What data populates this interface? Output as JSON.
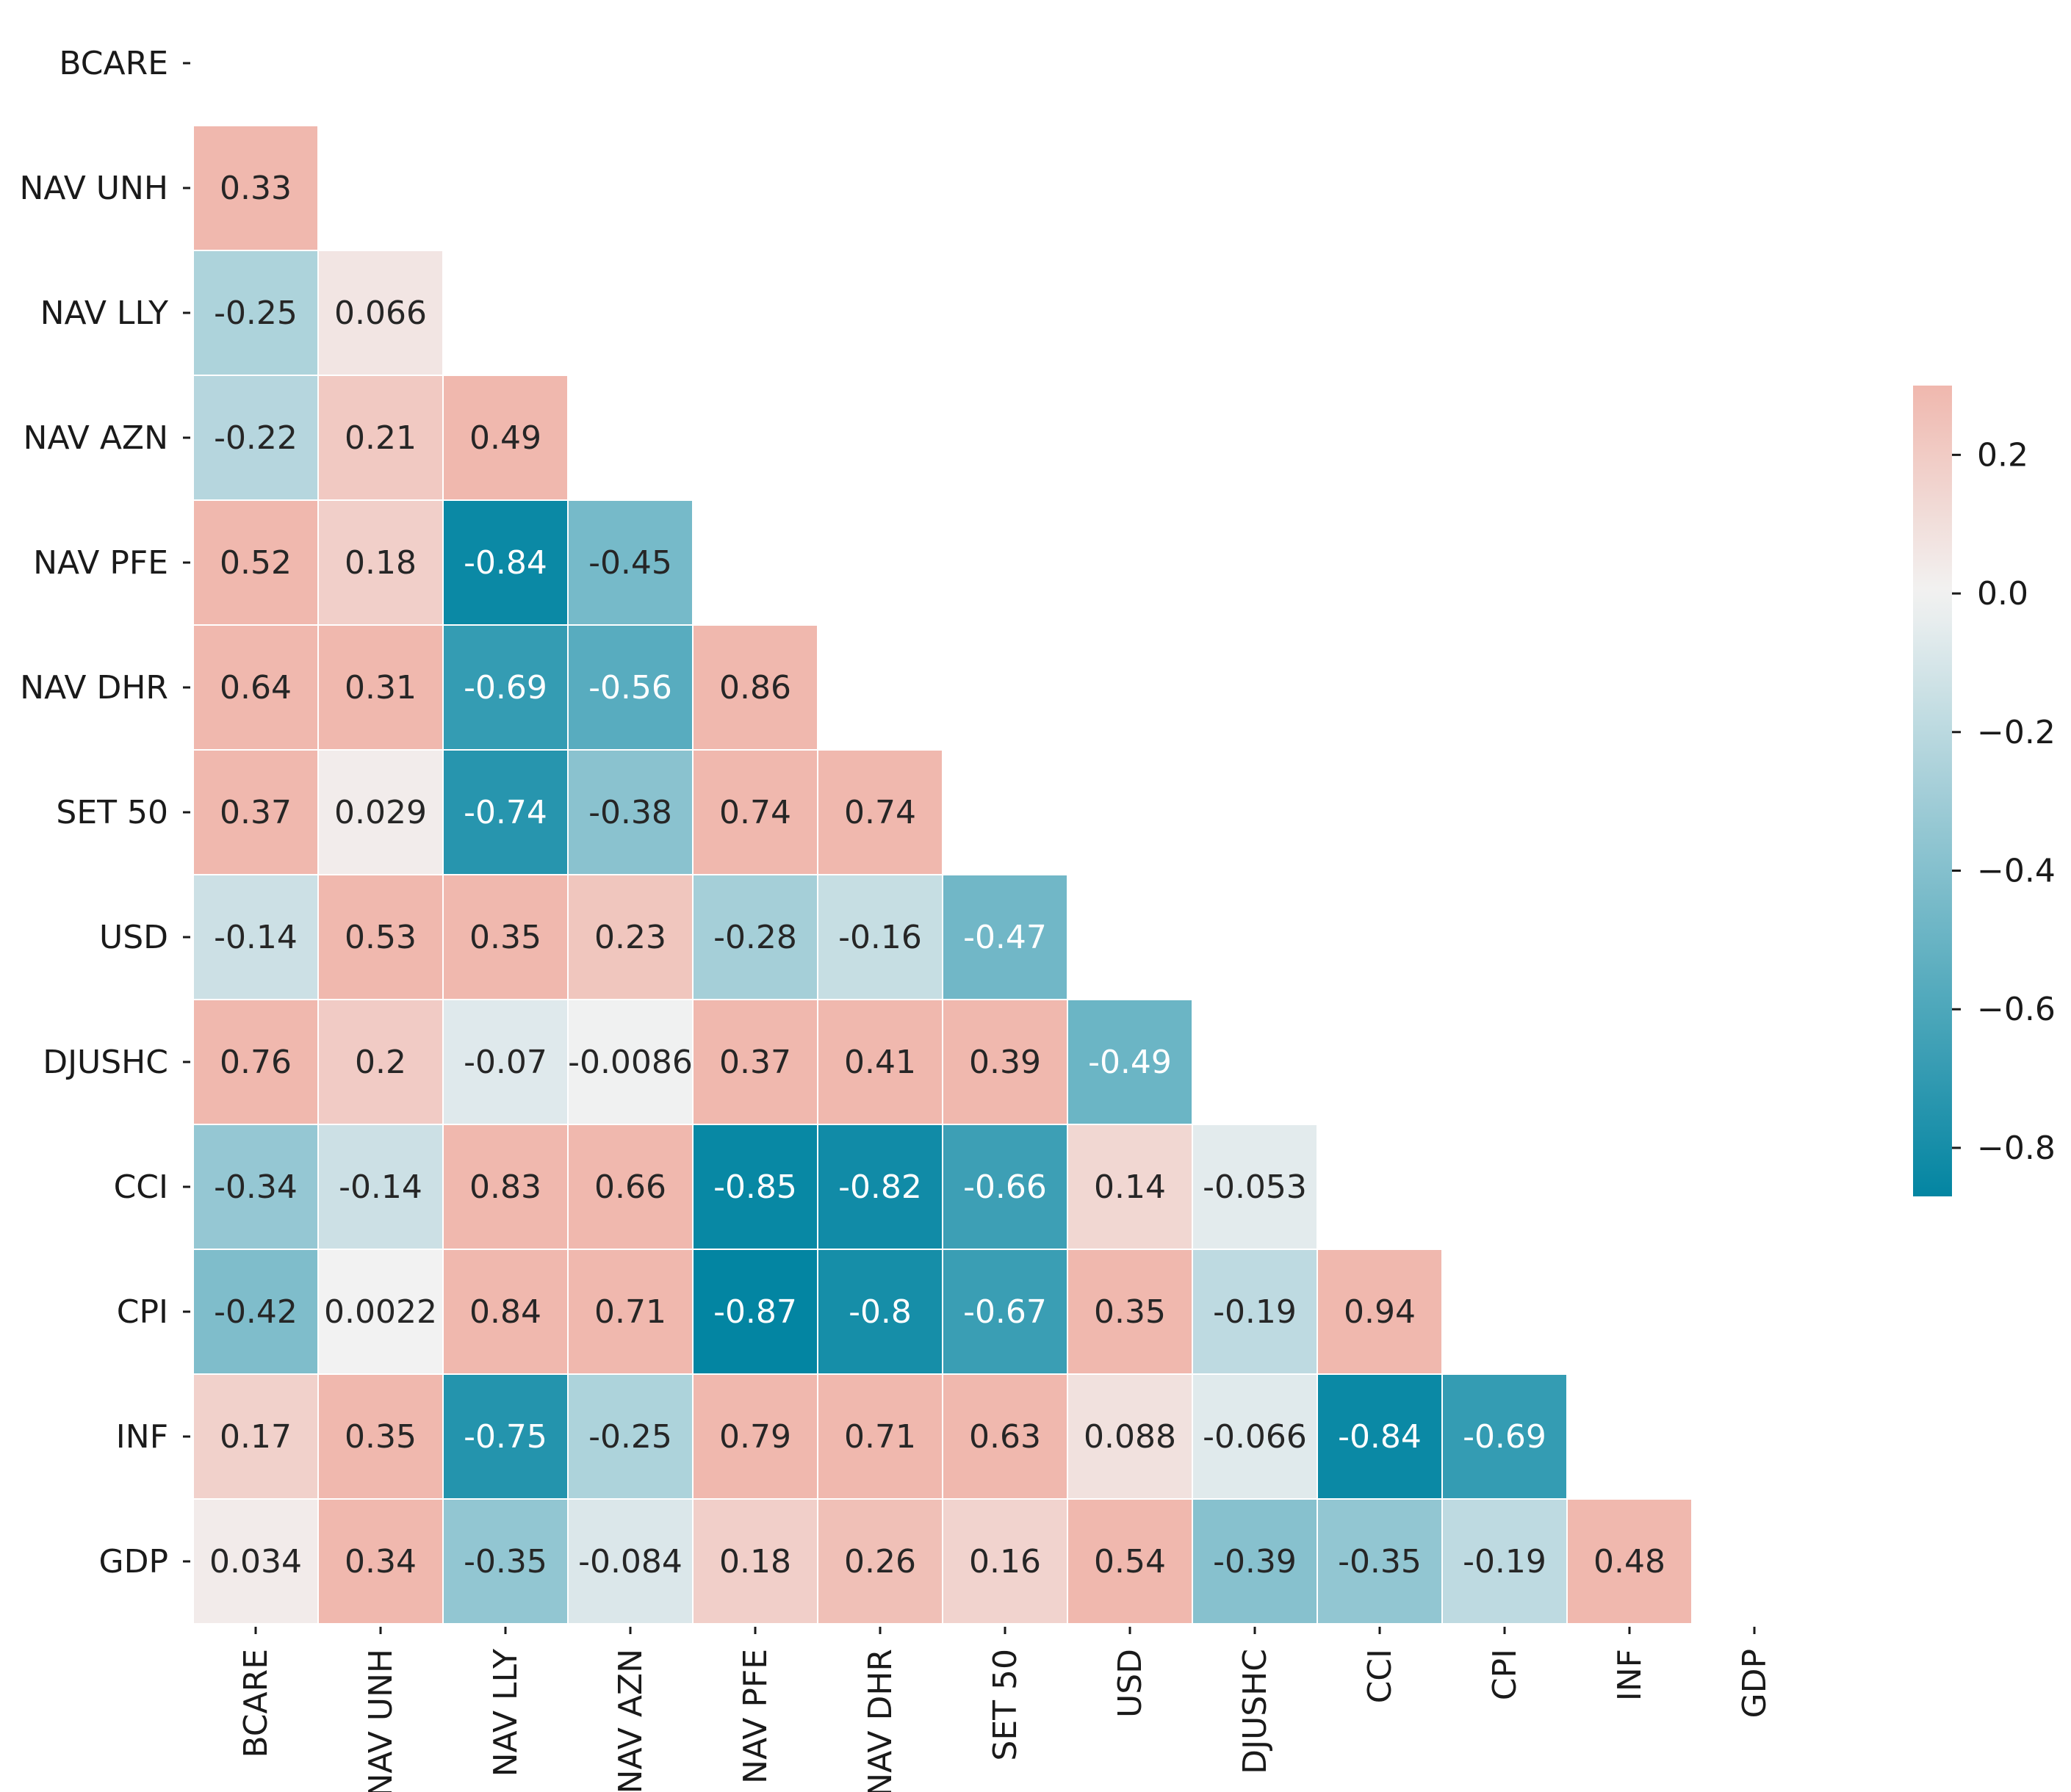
{
  "chart_data": {
    "type": "heatmap",
    "title": "",
    "xlabel": "",
    "ylabel": "",
    "row_labels": [
      "BCARE",
      "NAV UNH",
      "NAV LLY",
      "NAV AZN",
      "NAV PFE",
      "NAV DHR",
      "SET 50",
      "USD",
      "DJUSHC",
      "CCI",
      "CPI",
      "INF",
      "GDP"
    ],
    "col_labels": [
      "BCARE",
      "NAV UNH",
      "NAV LLY",
      "NAV AZN",
      "NAV PFE",
      "NAV DHR",
      "SET 50",
      "USD",
      "DJUSHC",
      "CCI",
      "CPI",
      "INF",
      "GDP"
    ],
    "mask": "upper triangle including diagonal",
    "values": [
      [],
      [
        "0.33"
      ],
      [
        "-0.25",
        "0.066"
      ],
      [
        "-0.22",
        "0.21",
        "0.49"
      ],
      [
        "0.52",
        "0.18",
        "-0.84",
        "-0.45"
      ],
      [
        "0.64",
        "0.31",
        "-0.69",
        "-0.56",
        "0.86"
      ],
      [
        "0.37",
        "0.029",
        "-0.74",
        "-0.38",
        "0.74",
        "0.74"
      ],
      [
        "-0.14",
        "0.53",
        "0.35",
        "0.23",
        "-0.28",
        "-0.16",
        "-0.47"
      ],
      [
        "0.76",
        "0.2",
        "-0.07",
        "-0.0086",
        "0.37",
        "0.41",
        "0.39",
        "-0.49"
      ],
      [
        "-0.34",
        "-0.14",
        "0.83",
        "0.66",
        "-0.85",
        "-0.82",
        "-0.66",
        "0.14",
        "-0.053"
      ],
      [
        "-0.42",
        "0.0022",
        "0.84",
        "0.71",
        "-0.87",
        "-0.8",
        "-0.67",
        "0.35",
        "-0.19",
        "0.94"
      ],
      [
        "0.17",
        "0.35",
        "-0.75",
        "-0.25",
        "0.79",
        "0.71",
        "0.63",
        "0.088",
        "-0.066",
        "-0.84",
        "-0.69"
      ],
      [
        "0.034",
        "0.34",
        "-0.35",
        "-0.084",
        "0.18",
        "0.26",
        "0.16",
        "0.54",
        "-0.39",
        "-0.35",
        "-0.19",
        "0.48"
      ]
    ],
    "colorbar": {
      "vmin": -0.87,
      "vmax": 0.3,
      "ticks": [
        0.2,
        0.0,
        -0.2,
        -0.4,
        -0.6,
        -0.8
      ],
      "tick_labels": [
        "0.2",
        "0.0",
        "−0.2",
        "−0.4",
        "−0.6",
        "−0.8"
      ],
      "colors": {
        "negative": "#0385a2",
        "center": "#f2f2f2",
        "positive": "#f0b8ae"
      }
    }
  }
}
